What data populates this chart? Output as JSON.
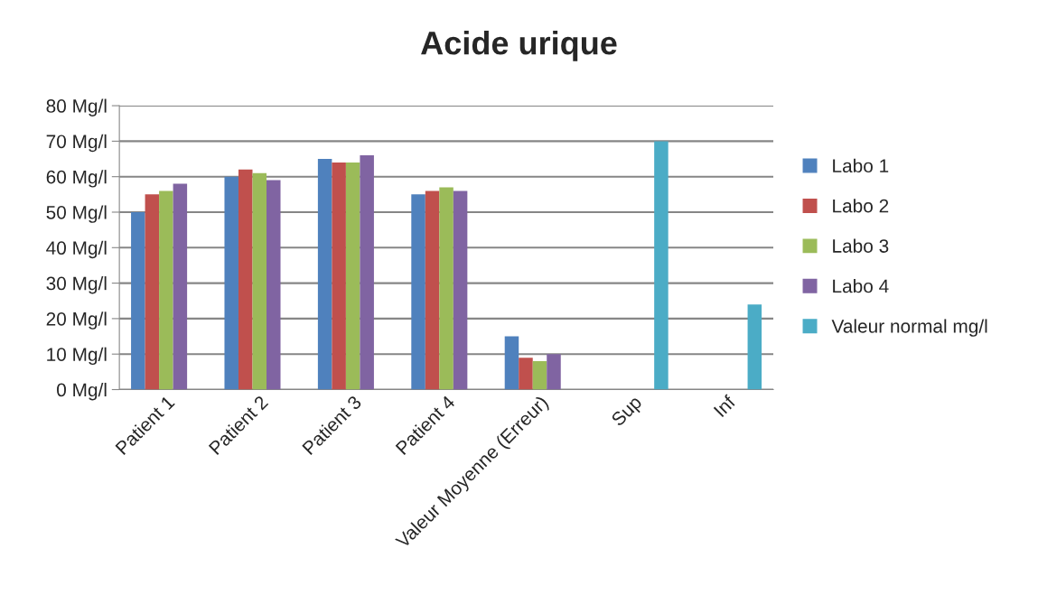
{
  "chart_data": {
    "type": "bar",
    "title": "Acide urique",
    "categories": [
      "Patient 1",
      "Patient 2",
      "Patient 3",
      "Patient 4",
      "Valeur Moyenne (Erreur)",
      "Sup",
      "Inf"
    ],
    "series": [
      {
        "name": "Labo 1",
        "color": "#4f81bd",
        "values": [
          50,
          60,
          65,
          55,
          15,
          null,
          null
        ]
      },
      {
        "name": "Labo 2",
        "color": "#c0504d",
        "values": [
          55,
          62,
          64,
          56,
          9,
          null,
          null
        ]
      },
      {
        "name": "Labo 3",
        "color": "#9bbb59",
        "values": [
          56,
          61,
          64,
          57,
          8,
          null,
          null
        ]
      },
      {
        "name": "Labo 4",
        "color": "#8064a2",
        "values": [
          58,
          59,
          66,
          56,
          10,
          null,
          null
        ]
      },
      {
        "name": "Valeur normal mg/l",
        "color": "#4bacc6",
        "values": [
          null,
          null,
          null,
          null,
          null,
          70,
          24
        ]
      }
    ],
    "ylim": [
      0,
      80
    ],
    "yticks": [
      {
        "value": 0,
        "label": "0 Mg/l"
      },
      {
        "value": 10,
        "label": "10 Mg/l"
      },
      {
        "value": 20,
        "label": "20 Mg/l"
      },
      {
        "value": 30,
        "label": "30 Mg/l"
      },
      {
        "value": 40,
        "label": "40 Mg/l"
      },
      {
        "value": 50,
        "label": "50 Mg/l"
      },
      {
        "value": 60,
        "label": "60 Mg/l"
      },
      {
        "value": 70,
        "label": "70 Mg/l"
      },
      {
        "value": 80,
        "label": "80 Mg/l"
      }
    ],
    "grid": "y",
    "legend": "right"
  }
}
